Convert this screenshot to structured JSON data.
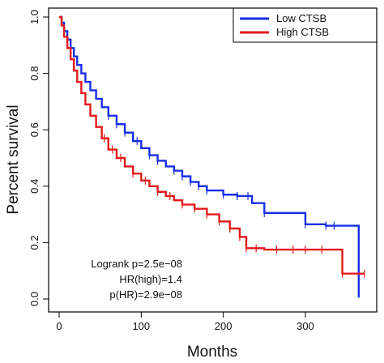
{
  "chart_data": {
    "type": "line",
    "xlabel": "Months",
    "ylabel": "Percent survival",
    "xlim": [
      0,
      380
    ],
    "ylim": [
      -0.02,
      1.02
    ],
    "x_ticks": [
      0,
      100,
      200,
      300
    ],
    "y_ticks": [
      0.0,
      0.2,
      0.4,
      0.6,
      0.8,
      1.0
    ],
    "x_tick_labels": [
      "0",
      "100",
      "200",
      "300"
    ],
    "y_tick_labels": [
      "0.0",
      "0.2",
      "0.4",
      "0.6",
      "0.8",
      "1.0"
    ],
    "legend_position": "top-right",
    "series": [
      {
        "name": "Low CTSB",
        "color": "#1a2ee6",
        "step": true,
        "x": [
          0,
          3,
          6,
          10,
          14,
          18,
          22,
          27,
          32,
          38,
          45,
          52,
          60,
          70,
          80,
          90,
          100,
          110,
          120,
          130,
          140,
          150,
          160,
          170,
          180,
          200,
          217,
          235,
          250,
          300,
          325,
          335,
          365
        ],
        "y": [
          1.0,
          0.98,
          0.95,
          0.92,
          0.89,
          0.86,
          0.83,
          0.8,
          0.77,
          0.74,
          0.71,
          0.68,
          0.65,
          0.62,
          0.59,
          0.56,
          0.535,
          0.51,
          0.49,
          0.47,
          0.455,
          0.435,
          0.415,
          0.4,
          0.385,
          0.37,
          0.365,
          0.34,
          0.305,
          0.265,
          0.26,
          0.26,
          0.005
        ],
        "censor_x": [
          60,
          70,
          80,
          95,
          110,
          120,
          140,
          150,
          160,
          170,
          180,
          200,
          217,
          230,
          250,
          300,
          325,
          335
        ]
      },
      {
        "name": "High CTSB",
        "color": "#e31a1c",
        "step": true,
        "x": [
          0,
          3,
          6,
          10,
          14,
          18,
          22,
          27,
          32,
          38,
          45,
          52,
          60,
          70,
          80,
          90,
          100,
          110,
          120,
          130,
          140,
          150,
          165,
          180,
          195,
          208,
          220,
          228,
          250,
          270,
          300,
          345,
          365
        ],
        "y": [
          1.0,
          0.97,
          0.93,
          0.89,
          0.85,
          0.81,
          0.77,
          0.73,
          0.69,
          0.65,
          0.61,
          0.57,
          0.53,
          0.5,
          0.47,
          0.445,
          0.42,
          0.4,
          0.38,
          0.365,
          0.35,
          0.335,
          0.32,
          0.3,
          0.275,
          0.25,
          0.22,
          0.18,
          0.175,
          0.175,
          0.175,
          0.09,
          0.09
        ],
        "censor_x": [
          55,
          65,
          75,
          90,
          105,
          120,
          135,
          150,
          165,
          180,
          195,
          208,
          220,
          228,
          240,
          265,
          285,
          300,
          320,
          345,
          372
        ]
      }
    ],
    "annotations": [
      "Logrank p=2.5e−08",
      "HR(high)=1.4",
      "p(HR)=2.9e−08"
    ]
  }
}
